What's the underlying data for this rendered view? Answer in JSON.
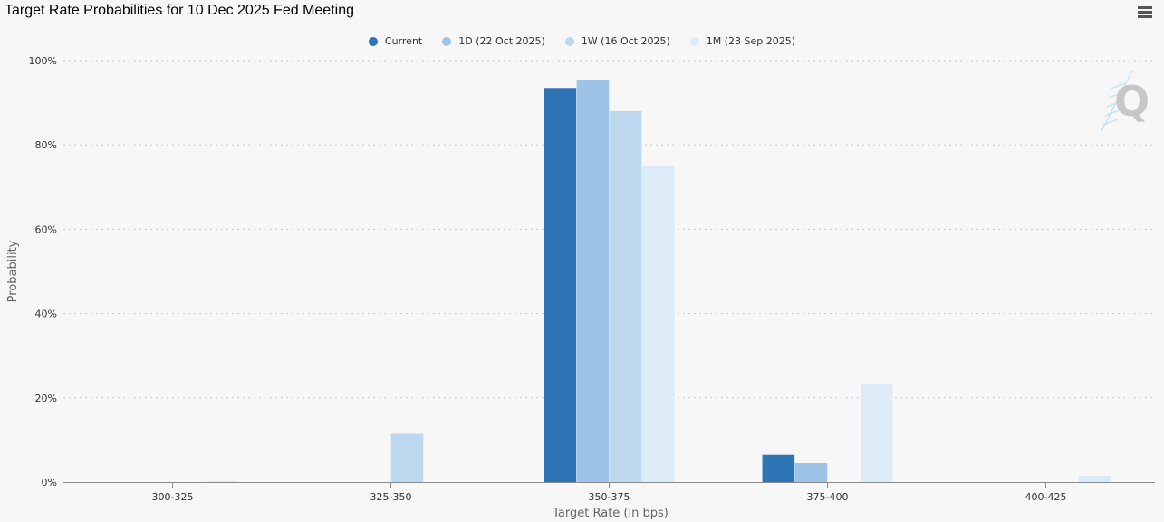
{
  "title": "Target Rate Probabilities for 10 Dec 2025 Fed Meeting",
  "menu_icon": "hamburger-menu-icon",
  "chart_data": {
    "type": "bar",
    "title": "Target Rate Probabilities for 10 Dec 2025 Fed Meeting",
    "xlabel": "Target Rate (in bps)",
    "ylabel": "Probability",
    "ylim": [
      0,
      100
    ],
    "yticks": [
      "0%",
      "20%",
      "40%",
      "60%",
      "80%",
      "100%"
    ],
    "ytick_values": [
      0,
      20,
      40,
      60,
      80,
      100
    ],
    "categories": [
      "300-325",
      "325-350",
      "350-375",
      "375-400",
      "400-425"
    ],
    "grid": "horizontal dotted",
    "legend_position": "top-center",
    "series": [
      {
        "name": "Current",
        "color": "#2e75b6",
        "values": [
          0,
          0,
          93.5,
          6.5,
          0
        ]
      },
      {
        "name": "1D (22 Oct 2025)",
        "color": "#9dc3e6",
        "values": [
          0,
          0,
          95.5,
          4.5,
          0
        ]
      },
      {
        "name": "1W (16 Oct 2025)",
        "color": "#bdd7ee",
        "values": [
          0,
          11.5,
          88.0,
          0,
          0
        ]
      },
      {
        "name": "1M (23 Sep 2025)",
        "color": "#ddebf7",
        "values": [
          0.2,
          0,
          75.0,
          23.3,
          1.5
        ]
      }
    ]
  }
}
